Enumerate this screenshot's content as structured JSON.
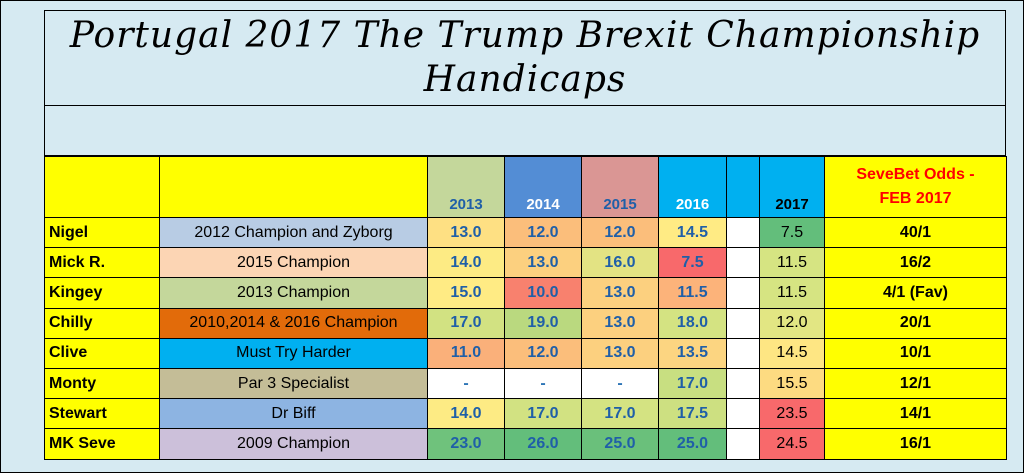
{
  "title": {
    "line1": "Portugal 2017 The Trump Brexit Championship",
    "line2": "Handicaps"
  },
  "header": {
    "years": [
      "2013",
      "2014",
      "2015",
      "2016"
    ],
    "year_2017": "2017",
    "odds_line1": "SeveBet Odds -",
    "odds_line2": "FEB  2017"
  },
  "colors": {
    "header_yellow": "#ffff00",
    "h2013": "#c4d79b",
    "h2014": "#538dd5",
    "h2015": "#da9694",
    "h2016": "#00b0f0",
    "h_gap": "#00b0f0",
    "h2017": "#00b0f0",
    "odds_text": "#ff0000"
  },
  "rows": [
    {
      "name": "Nigel",
      "desc": "2012 Champion and Zyborg",
      "desc_bg": "#b8cce4",
      "vals": [
        "13.0",
        "12.0",
        "12.0",
        "14.5"
      ],
      "val_bg": [
        "#fee083",
        "#fbbe7b",
        "#fbbe7b",
        "#ffeb84"
      ],
      "v2017": "7.5",
      "bg2017": "#63be7b",
      "odds": "40/1"
    },
    {
      "name": "Mick R.",
      "desc": "2015 Champion",
      "desc_bg": "#fcd5b4",
      "vals": [
        "14.0",
        "13.0",
        "16.0",
        "7.5"
      ],
      "val_bg": [
        "#fdeb84",
        "#fcd07f",
        "#e3e383",
        "#f8696b"
      ],
      "v2017": "11.5",
      "bg2017": "#d6e482",
      "odds": "16/2"
    },
    {
      "name": "Kingey",
      "desc": "2013 Champion",
      "desc_bg": "#c4d79b",
      "vals": [
        "15.0",
        "10.0",
        "13.0",
        "11.5"
      ],
      "val_bg": [
        "#ffeb84",
        "#f8816e",
        "#fcd07f",
        "#fcb37a"
      ],
      "v2017": "11.5",
      "bg2017": "#d6e482",
      "odds": "4/1 (Fav)"
    },
    {
      "name": "Chilly",
      "desc": "2010,2014 & 2016 Champion",
      "desc_bg": "#e26b0a",
      "vals": [
        "17.0",
        "19.0",
        "13.0",
        "18.0"
      ],
      "val_bg": [
        "#d2e282",
        "#bad97f",
        "#fcd07f",
        "#d4e382"
      ],
      "v2017": "12.0",
      "bg2017": "#e2e683",
      "odds": "20/1"
    },
    {
      "name": "Clive",
      "desc": "Must Try Harder",
      "desc_bg": "#00b0f0",
      "vals": [
        "11.0",
        "12.0",
        "13.0",
        "13.5"
      ],
      "val_bg": [
        "#fab07a",
        "#fbbe7b",
        "#fcd07f",
        "#fcd581"
      ],
      "v2017": "14.5",
      "bg2017": "#fee683",
      "odds": "10/1"
    },
    {
      "name": "Monty",
      "desc": "Par 3 Specialist",
      "desc_bg": "#c4bd97",
      "vals": [
        "-",
        "-",
        "-",
        "17.0"
      ],
      "val_bg": [
        "#ffffff",
        "#ffffff",
        "#ffffff",
        "#c8df81"
      ],
      "v2017": "15.5",
      "bg2017": "#fddb81",
      "odds": "12/1"
    },
    {
      "name": "Stewart",
      "desc": "Dr Biff",
      "desc_bg": "#8db4e2",
      "vals": [
        "14.0",
        "17.0",
        "17.0",
        "17.5"
      ],
      "val_bg": [
        "#fdeb84",
        "#d2e282",
        "#d4e382",
        "#cde081"
      ],
      "v2017": "23.5",
      "bg2017": "#f8696b",
      "odds": "14/1"
    },
    {
      "name": "MK Seve",
      "desc": "2009 Champion",
      "desc_bg": "#ccc0da",
      "vals": [
        "23.0",
        "26.0",
        "25.0",
        "25.0"
      ],
      "val_bg": [
        "#6fc27c",
        "#63be7b",
        "#6ac07b",
        "#63be7b"
      ],
      "v2017": "24.5",
      "bg2017": "#f8696b",
      "odds": "16/1"
    }
  ]
}
